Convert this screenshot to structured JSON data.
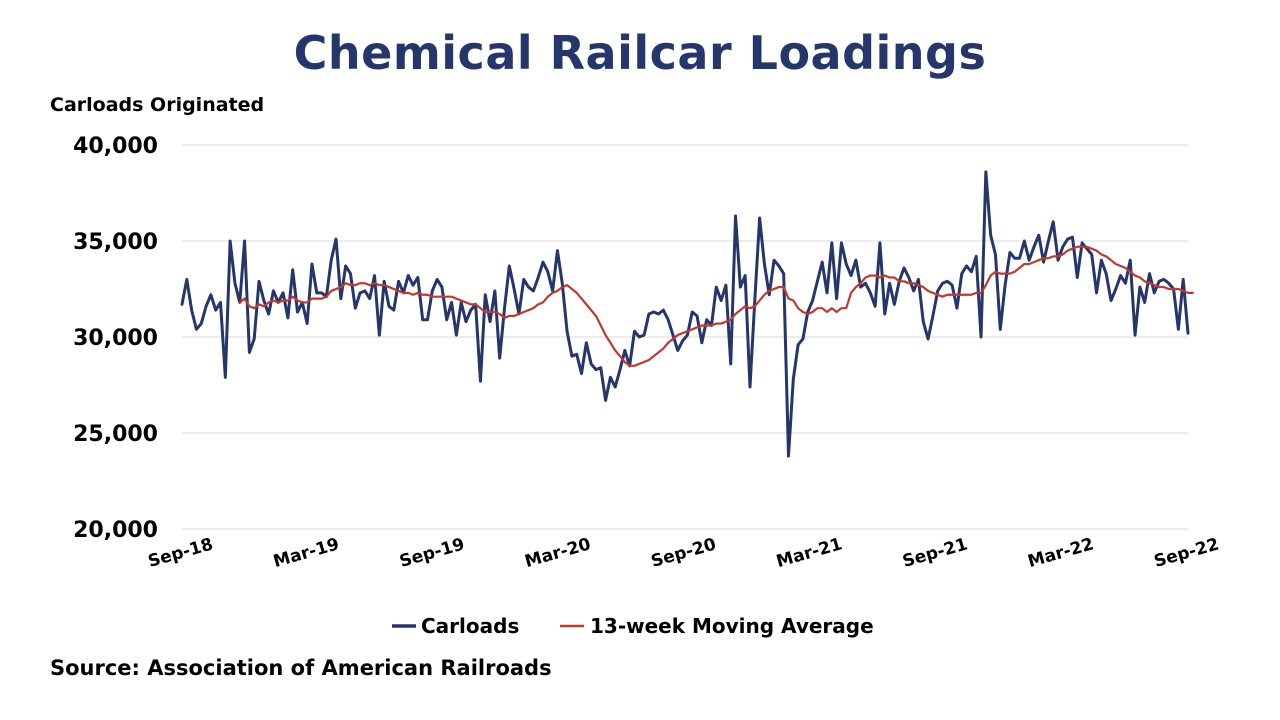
{
  "title": "Chemical Railcar Loadings",
  "y_unit_label": "Carloads Originated",
  "source": "Source: Association of American Railroads",
  "chart_data": {
    "type": "line",
    "title": "Chemical Railcar Loadings",
    "ylabel": "Carloads Originated",
    "xlabel": "",
    "ylim": [
      20000,
      40000
    ],
    "yticks": [
      20000,
      25000,
      30000,
      35000,
      40000
    ],
    "ytick_labels": [
      "20,000",
      "25,000",
      "30,000",
      "35,000",
      "40,000"
    ],
    "xtick_labels": [
      "Sep-18",
      "Mar-19",
      "Sep-19",
      "Mar-20",
      "Sep-20",
      "Mar-21",
      "Sep-21",
      "Mar-22",
      "Sep-22"
    ],
    "grid": "horizontal",
    "legend": "bottom",
    "series": [
      {
        "name": "Carloads",
        "color": "#24366b",
        "values": [
          31700,
          33000,
          31400,
          30400,
          30700,
          31600,
          32200,
          31400,
          31800,
          27900,
          35000,
          32800,
          31800,
          35000,
          29200,
          29900,
          32900,
          31900,
          31200,
          32400,
          31800,
          32300,
          31000,
          33500,
          31300,
          31800,
          30700,
          33800,
          32300,
          32300,
          32100,
          34000,
          35100,
          32000,
          33700,
          33300,
          31500,
          32300,
          32400,
          32000,
          33200,
          30100,
          32900,
          31600,
          31400,
          32900,
          32300,
          33200,
          32700,
          33100,
          30900,
          30900,
          32400,
          33000,
          32600,
          30900,
          31800,
          30100,
          31800,
          30800,
          31400,
          31700,
          27700,
          32200,
          30800,
          32400,
          28900,
          31500,
          33700,
          32500,
          31200,
          33000,
          32600,
          32400,
          33100,
          33900,
          33400,
          32400,
          34500,
          32800,
          30300,
          29000,
          29100,
          28100,
          29700,
          28600,
          28300,
          28400,
          26700,
          27900,
          27400,
          28300,
          29300,
          28500,
          30300,
          30000,
          30100,
          31200,
          31300,
          31200,
          31400,
          30900,
          30100,
          29300,
          29800,
          30100,
          31300,
          31100,
          29700,
          30900,
          30600,
          32600,
          31900,
          32700,
          28600,
          36300,
          32600,
          33200,
          27400,
          31900,
          36200,
          33800,
          32200,
          34000,
          33700,
          33300,
          23800,
          27800,
          29600,
          29900,
          31300,
          31900,
          32900,
          33900,
          32300,
          34900,
          32000,
          34900,
          33800,
          33200,
          34000,
          32600,
          32800,
          32300,
          31600,
          34900,
          31200,
          32800,
          31700,
          32900,
          33600,
          33100,
          32400,
          33000,
          30800,
          29900,
          31100,
          32400,
          32800,
          32900,
          32700,
          31500,
          33300,
          33700,
          33400,
          34200,
          30000,
          38600,
          35300,
          34300,
          30400,
          32700,
          34400,
          34100,
          34100,
          35000,
          34000,
          34700,
          35300,
          33900,
          35000,
          36000,
          34000,
          34700,
          35100,
          35200,
          33100,
          34900,
          34600,
          34300,
          32300,
          34000,
          33300,
          31900,
          32500,
          33200,
          32800,
          34000,
          30100,
          32600,
          31800,
          33300,
          32300,
          32900,
          33000,
          32800,
          32500,
          30400,
          33000,
          30200
        ]
      },
      {
        "name": "13-week Moving Average",
        "color": "#c0392b",
        "values": [
          null,
          null,
          null,
          null,
          null,
          null,
          null,
          null,
          null,
          null,
          null,
          null,
          31800,
          32000,
          31600,
          31500,
          31700,
          31600,
          31800,
          31900,
          31800,
          31900,
          31900,
          32100,
          31900,
          31800,
          31800,
          32000,
          32000,
          32000,
          32100,
          32400,
          32500,
          32600,
          32800,
          32700,
          32700,
          32800,
          32800,
          32700,
          32800,
          32700,
          32700,
          32600,
          32500,
          32400,
          32300,
          32300,
          32200,
          32300,
          32200,
          32200,
          32100,
          32100,
          32100,
          32100,
          32100,
          32000,
          31900,
          31800,
          31700,
          31700,
          31500,
          31300,
          31300,
          31300,
          31200,
          31000,
          31100,
          31100,
          31200,
          31300,
          31400,
          31500,
          31700,
          31800,
          32100,
          32300,
          32400,
          32600,
          32700,
          32500,
          32300,
          32000,
          31700,
          31400,
          31100,
          30600,
          30100,
          29700,
          29300,
          29000,
          28700,
          28500,
          28500,
          28600,
          28700,
          28800,
          29000,
          29200,
          29400,
          29700,
          29900,
          30100,
          30200,
          30300,
          30400,
          30500,
          30600,
          30600,
          30600,
          30700,
          30700,
          30800,
          30900,
          31200,
          31400,
          31600,
          31500,
          31600,
          31900,
          32200,
          32400,
          32500,
          32600,
          32600,
          32000,
          31900,
          31500,
          31300,
          31200,
          31300,
          31500,
          31500,
          31300,
          31500,
          31300,
          31500,
          31500,
          32300,
          32600,
          32800,
          33100,
          33200,
          33200,
          33100,
          33200,
          33100,
          33100,
          32900,
          32900,
          32800,
          32800,
          32700,
          32600,
          32400,
          32300,
          32200,
          32100,
          32200,
          32200,
          32200,
          32200,
          32200,
          32200,
          32300,
          32300,
          32700,
          33200,
          33400,
          33300,
          33300,
          33300,
          33400,
          33600,
          33800,
          33800,
          33900,
          34000,
          34100,
          34100,
          34200,
          34200,
          34300,
          34500,
          34600,
          34700,
          34700,
          34700,
          34600,
          34500,
          34300,
          34200,
          34000,
          33800,
          33700,
          33600,
          33400,
          33200,
          33100,
          32900,
          32800,
          32700,
          32600,
          32600,
          32500,
          32500,
          32500,
          32400,
          32300,
          32300
        ]
      }
    ]
  }
}
